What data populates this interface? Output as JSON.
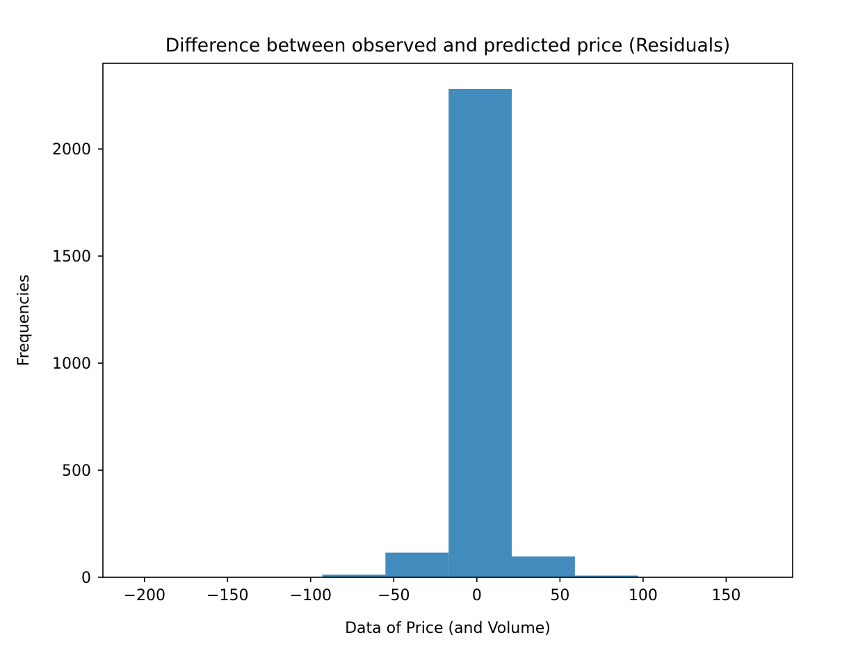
{
  "chart_data": {
    "type": "bar",
    "title": "Difference between observed and predicted price (Residuals)",
    "xlabel": "Data of Price (and Volume)",
    "ylabel": "Frequencies",
    "xlim": [
      -225,
      190
    ],
    "ylim": [
      0,
      2400
    ],
    "x_ticks": [
      -200,
      -150,
      -100,
      -50,
      0,
      50,
      100,
      150
    ],
    "x_tick_labels": [
      "−200",
      "−150",
      "−100",
      "−50",
      "0",
      "50",
      "100",
      "150"
    ],
    "y_ticks": [
      0,
      500,
      1000,
      1500,
      2000
    ],
    "y_tick_labels": [
      "0",
      "500",
      "1000",
      "1500",
      "2000"
    ],
    "bins": [
      {
        "x0": -200,
        "x1": -162,
        "count": 0
      },
      {
        "x0": -162,
        "x1": -124,
        "count": 0
      },
      {
        "x0": -124,
        "x1": -93,
        "count": 1
      },
      {
        "x0": -93,
        "x1": -55,
        "count": 12
      },
      {
        "x0": -55,
        "x1": -17,
        "count": 115
      },
      {
        "x0": -17,
        "x1": 21,
        "count": 2280
      },
      {
        "x0": 21,
        "x1": 59,
        "count": 97
      },
      {
        "x0": 59,
        "x1": 97,
        "count": 8
      },
      {
        "x0": 97,
        "x1": 135,
        "count": 1
      },
      {
        "x0": 135,
        "x1": 173,
        "count": 1
      }
    ],
    "grid": false,
    "bar_color": "#428bbd"
  }
}
